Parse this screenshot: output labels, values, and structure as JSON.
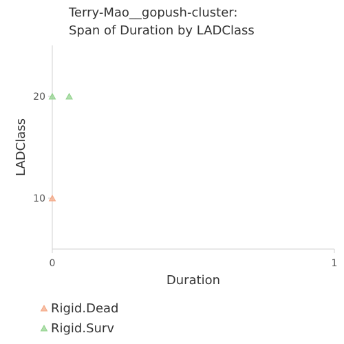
{
  "chart_data": {
    "type": "scatter",
    "title": [
      "Terry-Mao__gopush-cluster:",
      "Span of Duration by LADClass"
    ],
    "xlabel": "Duration",
    "ylabel": "LADClass",
    "xlim": [
      0,
      1
    ],
    "ylim": [
      5,
      25
    ],
    "x_ticks": [
      0,
      1
    ],
    "y_ticks": [
      10,
      20
    ],
    "grid": false,
    "legend_position": "bottom-left",
    "marker": "triangle",
    "series": [
      {
        "name": "Rigid.Dead",
        "color": "#f4a582",
        "points": [
          {
            "x": 0,
            "y": 10
          }
        ]
      },
      {
        "name": "Rigid.Surv",
        "color": "#8fd18a",
        "points": [
          {
            "x": 0,
            "y": 20
          },
          {
            "x": 0.06,
            "y": 20
          }
        ]
      }
    ]
  }
}
